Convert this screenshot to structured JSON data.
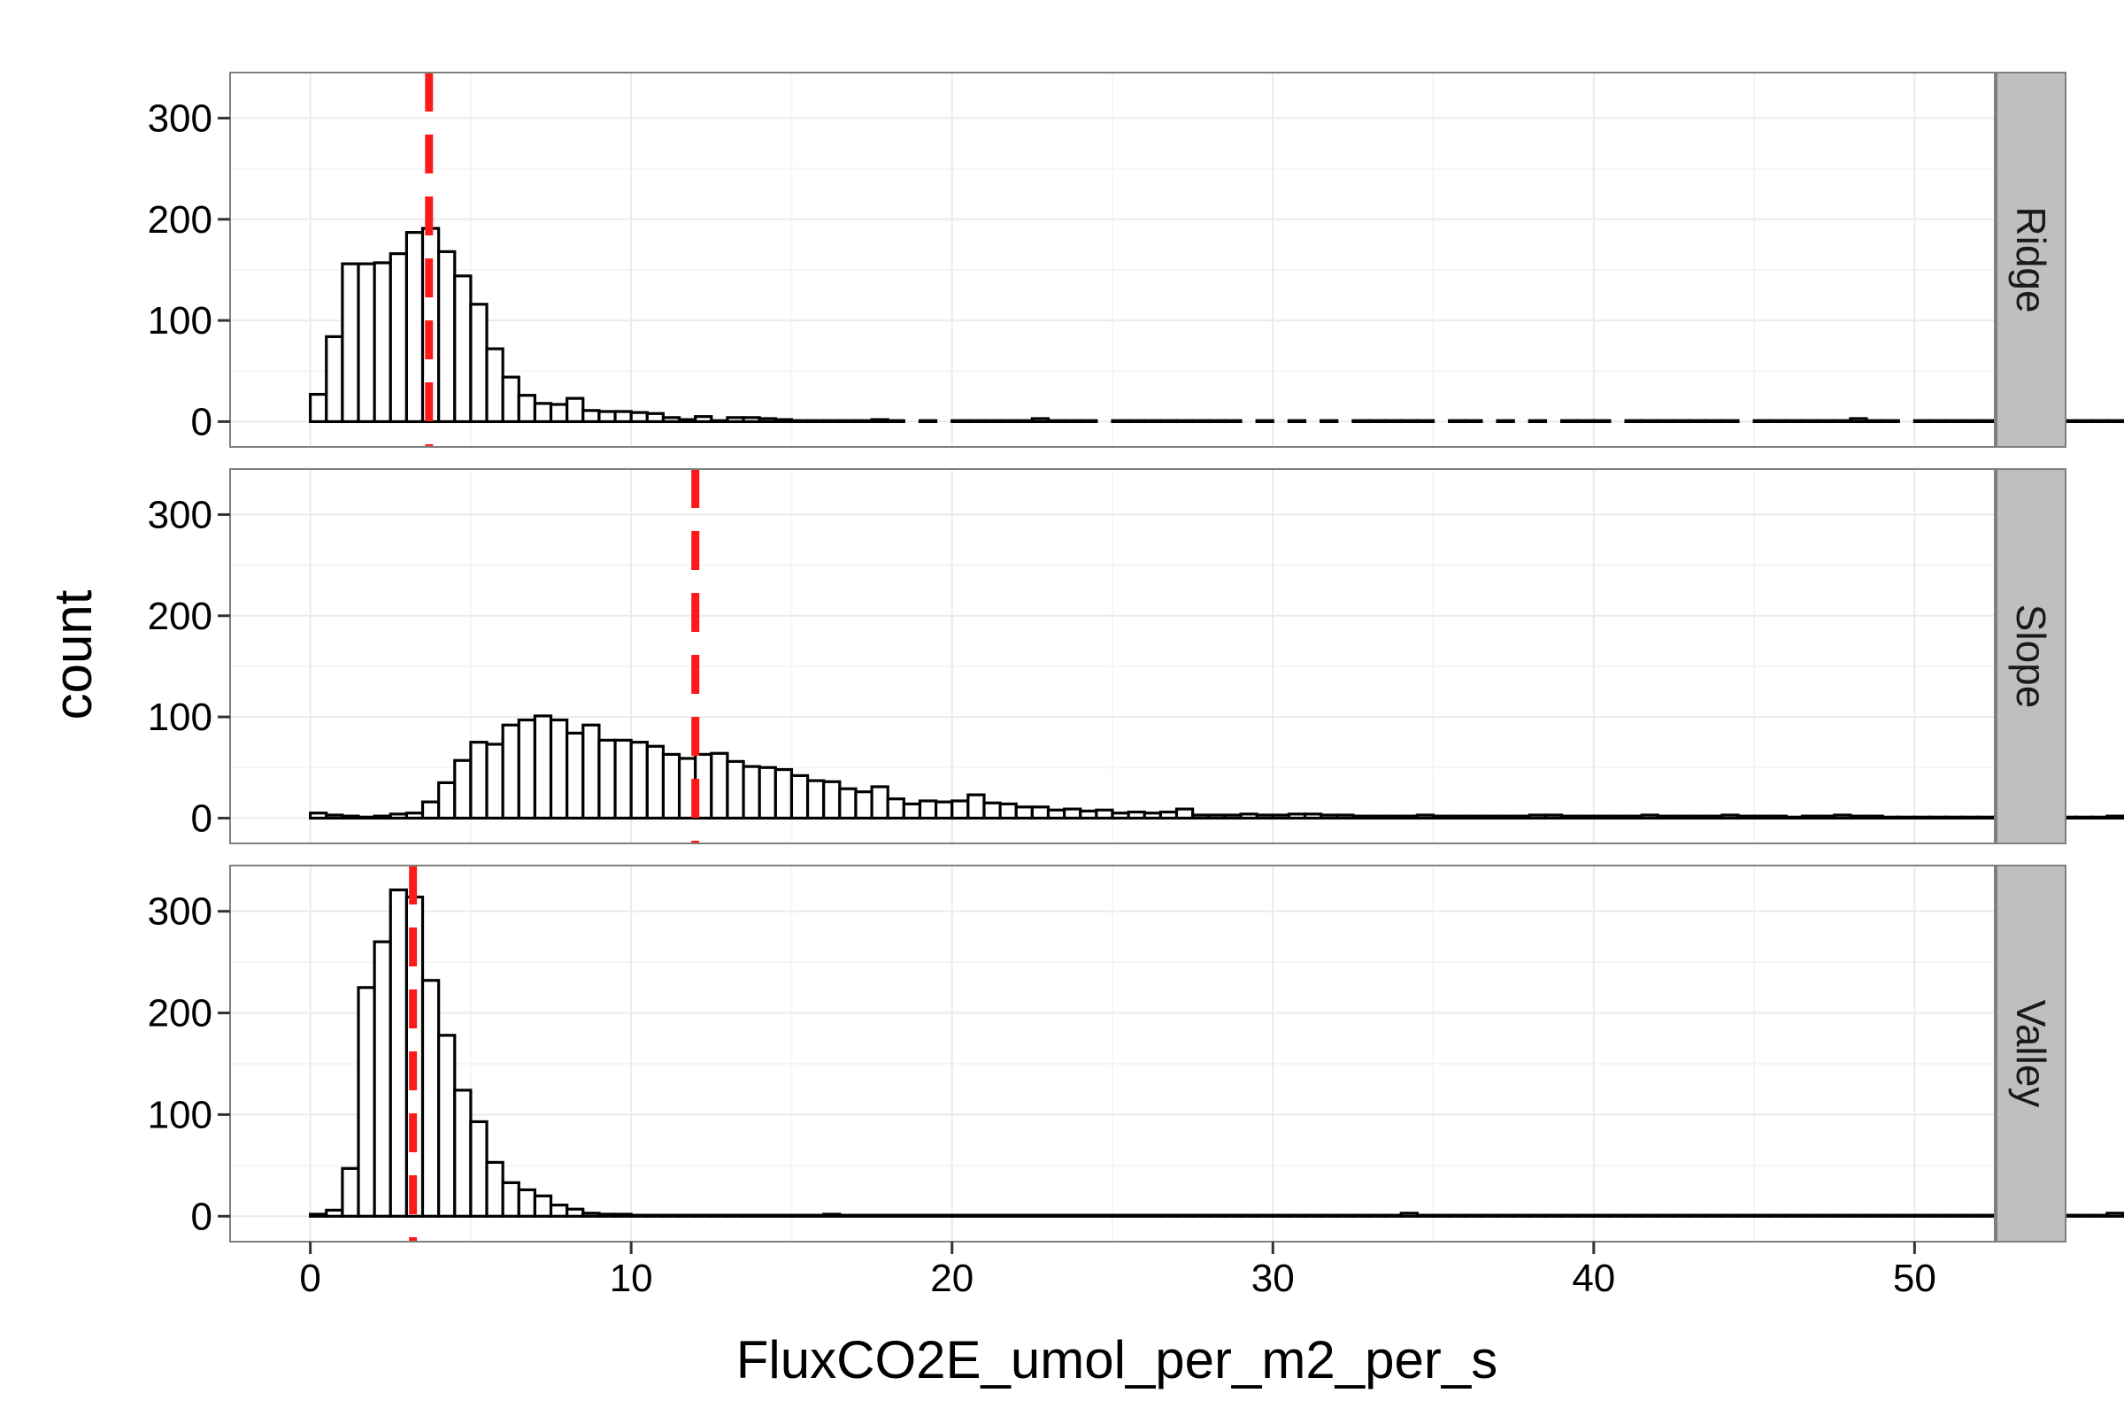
{
  "chart_data": {
    "type": "bar",
    "subtype": "faceted-histogram",
    "title": "",
    "xlabel": "FluxCO2E_umol_per_m2_per_s",
    "ylabel": "count",
    "xlim": [
      -2.5,
      52.5
    ],
    "ylim": [
      -25,
      345
    ],
    "x_ticks": [
      0,
      10,
      20,
      30,
      40,
      50
    ],
    "y_ticks": [
      0,
      100,
      200,
      300
    ],
    "grid": true,
    "facet_strip_position": "right",
    "binwidth": 0.5,
    "bin_start": 0,
    "bar_fill": "#ffffff",
    "bar_outline": "#000000",
    "panel_background": "#ffffff",
    "grid_color": "#ebebeb",
    "strip_fill": "#bfbfbf",
    "reference_line_color": "#ff1a1a",
    "reference_line_style": "dashed",
    "panels": [
      {
        "name": "Ridge",
        "reference_line_x": 3.7,
        "counts": [
          27,
          84,
          156,
          156,
          157,
          166,
          187,
          191,
          168,
          144,
          116,
          72,
          44,
          26,
          18,
          17,
          23,
          11,
          10,
          10,
          9,
          8,
          4,
          2,
          5,
          1,
          4,
          4,
          3,
          2,
          1,
          1,
          1,
          1,
          1,
          2,
          1,
          0,
          1,
          0,
          1,
          1,
          1,
          1,
          1,
          3,
          1,
          1,
          1,
          0,
          1,
          1,
          1,
          1,
          1,
          1,
          1,
          1,
          0,
          1,
          0,
          1,
          0,
          1,
          0,
          1,
          1,
          1,
          1,
          1,
          0,
          1,
          1,
          0,
          1,
          0,
          1,
          0,
          1,
          1,
          1,
          0,
          1,
          1,
          1,
          1,
          1,
          1,
          1,
          0,
          1,
          1,
          1,
          1,
          1,
          1,
          3,
          1,
          1,
          0,
          1,
          1,
          1,
          1,
          1,
          1,
          1,
          0,
          1,
          1,
          1,
          1,
          1,
          1,
          1,
          1,
          1,
          1,
          1,
          1,
          1,
          1,
          1,
          1,
          1,
          1,
          1,
          1,
          1,
          1,
          1,
          1,
          1,
          1,
          1,
          1,
          1,
          1,
          1,
          1,
          1,
          1,
          1,
          1,
          1,
          3,
          1,
          1,
          1,
          1
        ]
      },
      {
        "name": "Slope",
        "reference_line_x": 12.0,
        "counts": [
          5,
          3,
          2,
          1,
          2,
          4,
          5,
          16,
          35,
          57,
          75,
          73,
          92,
          97,
          101,
          97,
          84,
          92,
          77,
          77,
          75,
          71,
          63,
          59,
          63,
          64,
          56,
          51,
          50,
          48,
          42,
          37,
          36,
          29,
          26,
          31,
          19,
          14,
          17,
          16,
          17,
          23,
          15,
          14,
          11,
          11,
          8,
          9,
          7,
          8,
          5,
          6,
          5,
          6,
          9,
          3,
          3,
          3,
          4,
          3,
          3,
          4,
          4,
          3,
          3,
          2,
          2,
          2,
          2,
          3,
          2,
          2,
          2,
          2,
          2,
          2,
          3,
          3,
          2,
          2,
          2,
          2,
          2,
          3,
          2,
          2,
          2,
          2,
          3,
          2,
          2,
          2,
          1,
          2,
          2,
          3,
          2,
          2,
          1,
          1,
          1,
          1,
          1,
          1,
          1,
          1,
          1,
          1,
          1,
          1,
          1,
          1,
          2,
          1,
          2,
          1,
          1,
          1,
          2,
          3,
          2,
          1,
          2,
          1,
          2,
          1,
          1,
          2,
          1,
          1,
          1,
          1,
          1,
          1,
          1,
          2,
          1,
          2,
          2,
          1,
          1,
          1,
          1,
          1,
          1,
          1,
          1,
          1,
          3,
          4
        ]
      },
      {
        "name": "Valley",
        "reference_line_x": 3.2,
        "counts": [
          2,
          6,
          47,
          225,
          270,
          321,
          314,
          232,
          178,
          124,
          93,
          53,
          33,
          26,
          20,
          11,
          7,
          3,
          2,
          2,
          1,
          1,
          1,
          1,
          1,
          1,
          1,
          1,
          1,
          1,
          1,
          1,
          2,
          1,
          1,
          1,
          1,
          1,
          1,
          1,
          1,
          1,
          1,
          1,
          1,
          1,
          1,
          1,
          1,
          1,
          1,
          1,
          1,
          1,
          1,
          1,
          1,
          1,
          1,
          1,
          1,
          1,
          1,
          1,
          1,
          1,
          1,
          1,
          3,
          1,
          1,
          1,
          1,
          1,
          1,
          1,
          1,
          1,
          1,
          1,
          1,
          1,
          1,
          1,
          1,
          1,
          1,
          1,
          1,
          1,
          1,
          1,
          1,
          1,
          1,
          1,
          1,
          1,
          1,
          1,
          1,
          1,
          1,
          1,
          1,
          1,
          1,
          1,
          1,
          1,
          1,
          1,
          3,
          1,
          1,
          1,
          1,
          1,
          1,
          1,
          1,
          1,
          1,
          1,
          1,
          1,
          1,
          1,
          1,
          1,
          1,
          1,
          1,
          1,
          1,
          1,
          1,
          1,
          1,
          1,
          1,
          1,
          1,
          1,
          1,
          1,
          1,
          1,
          1,
          1
        ]
      }
    ]
  }
}
